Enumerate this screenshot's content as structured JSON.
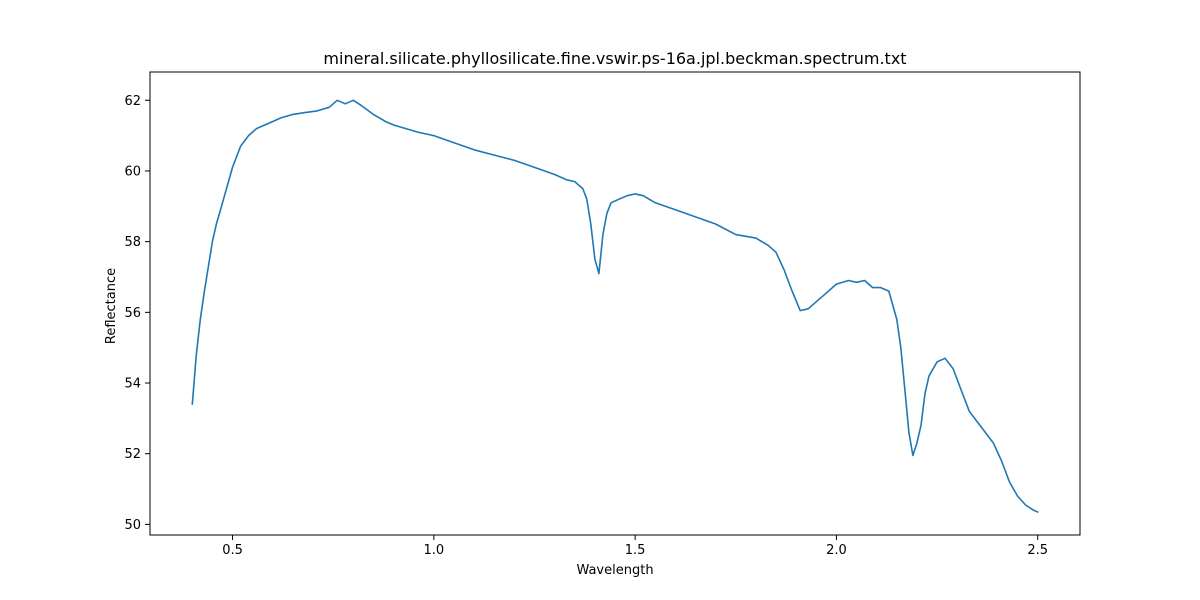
{
  "chart_data": {
    "type": "line",
    "title": "mineral.silicate.phyllosilicate.fine.vswir.ps-16a.jpl.beckman.spectrum.txt",
    "xlabel": "Wavelength",
    "ylabel": "Reflectance",
    "xlim": [
      0.295,
      2.605
    ],
    "ylim": [
      49.7,
      62.8
    ],
    "xticks": [
      0.5,
      1.0,
      1.5,
      2.0,
      2.5
    ],
    "xtick_labels": [
      "0.5",
      "1.0",
      "1.5",
      "2.0",
      "2.5"
    ],
    "yticks": [
      50,
      52,
      54,
      56,
      58,
      60,
      62
    ],
    "ytick_labels": [
      "50",
      "52",
      "54",
      "56",
      "58",
      "60",
      "62"
    ],
    "grid": false,
    "legend": "none",
    "series": [
      {
        "color": "#1f77b4",
        "x": [
          0.4,
          0.41,
          0.42,
          0.43,
          0.44,
          0.45,
          0.46,
          0.47,
          0.48,
          0.49,
          0.5,
          0.52,
          0.54,
          0.56,
          0.58,
          0.6,
          0.62,
          0.65,
          0.68,
          0.71,
          0.74,
          0.76,
          0.78,
          0.8,
          0.82,
          0.85,
          0.88,
          0.9,
          0.93,
          0.96,
          1.0,
          1.05,
          1.1,
          1.15,
          1.2,
          1.25,
          1.3,
          1.33,
          1.35,
          1.37,
          1.38,
          1.39,
          1.4,
          1.41,
          1.42,
          1.43,
          1.44,
          1.46,
          1.48,
          1.5,
          1.52,
          1.55,
          1.6,
          1.65,
          1.7,
          1.75,
          1.8,
          1.83,
          1.85,
          1.87,
          1.89,
          1.91,
          1.93,
          1.95,
          1.97,
          2.0,
          2.03,
          2.05,
          2.07,
          2.09,
          2.11,
          2.13,
          2.15,
          2.16,
          2.17,
          2.18,
          2.19,
          2.2,
          2.21,
          2.22,
          2.23,
          2.25,
          2.27,
          2.29,
          2.31,
          2.33,
          2.35,
          2.37,
          2.39,
          2.41,
          2.43,
          2.45,
          2.47,
          2.49,
          2.5
        ],
        "y": [
          53.4,
          54.8,
          55.8,
          56.6,
          57.3,
          58.0,
          58.5,
          58.9,
          59.3,
          59.7,
          60.1,
          60.7,
          61.0,
          61.2,
          61.3,
          61.4,
          61.5,
          61.6,
          61.65,
          61.7,
          61.8,
          62.0,
          61.9,
          62.0,
          61.85,
          61.6,
          61.4,
          61.3,
          61.2,
          61.1,
          61.0,
          60.8,
          60.6,
          60.45,
          60.3,
          60.1,
          59.9,
          59.75,
          59.7,
          59.5,
          59.2,
          58.5,
          57.5,
          57.1,
          58.2,
          58.8,
          59.1,
          59.2,
          59.3,
          59.35,
          59.3,
          59.1,
          58.9,
          58.7,
          58.5,
          58.2,
          58.1,
          57.9,
          57.7,
          57.2,
          56.6,
          56.05,
          56.1,
          56.3,
          56.5,
          56.8,
          56.9,
          56.85,
          56.9,
          56.7,
          56.7,
          56.6,
          55.8,
          55.0,
          53.8,
          52.6,
          51.95,
          52.3,
          52.8,
          53.7,
          54.2,
          54.6,
          54.7,
          54.4,
          53.8,
          53.2,
          52.9,
          52.6,
          52.3,
          51.8,
          51.2,
          50.8,
          50.55,
          50.4,
          50.35
        ]
      }
    ]
  }
}
